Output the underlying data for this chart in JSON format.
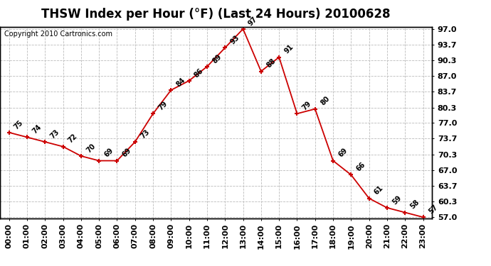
{
  "title": "THSW Index per Hour (°F) (Last 24 Hours) 20100628",
  "copyright": "Copyright 2010 Cartronics.com",
  "hours": [
    "00:00",
    "01:00",
    "02:00",
    "03:00",
    "04:00",
    "05:00",
    "06:00",
    "07:00",
    "08:00",
    "09:00",
    "10:00",
    "11:00",
    "12:00",
    "13:00",
    "14:00",
    "15:00",
    "16:00",
    "17:00",
    "18:00",
    "19:00",
    "20:00",
    "21:00",
    "22:00",
    "23:00"
  ],
  "values": [
    75,
    74,
    73,
    72,
    70,
    69,
    69,
    73,
    79,
    84,
    86,
    89,
    93,
    97,
    88,
    91,
    79,
    80,
    69,
    66,
    61,
    59,
    58,
    57
  ],
  "line_color": "#cc0000",
  "marker_color": "#cc0000",
  "bg_color": "#ffffff",
  "grid_color": "#bbbbbb",
  "ylim_min": 57.0,
  "ylim_max": 97.0,
  "yticks": [
    57.0,
    60.3,
    63.7,
    67.0,
    70.3,
    73.7,
    77.0,
    80.3,
    83.7,
    87.0,
    90.3,
    93.7,
    97.0
  ],
  "title_fontsize": 12,
  "copyright_fontsize": 7,
  "tick_fontsize": 8,
  "label_fontsize": 7
}
